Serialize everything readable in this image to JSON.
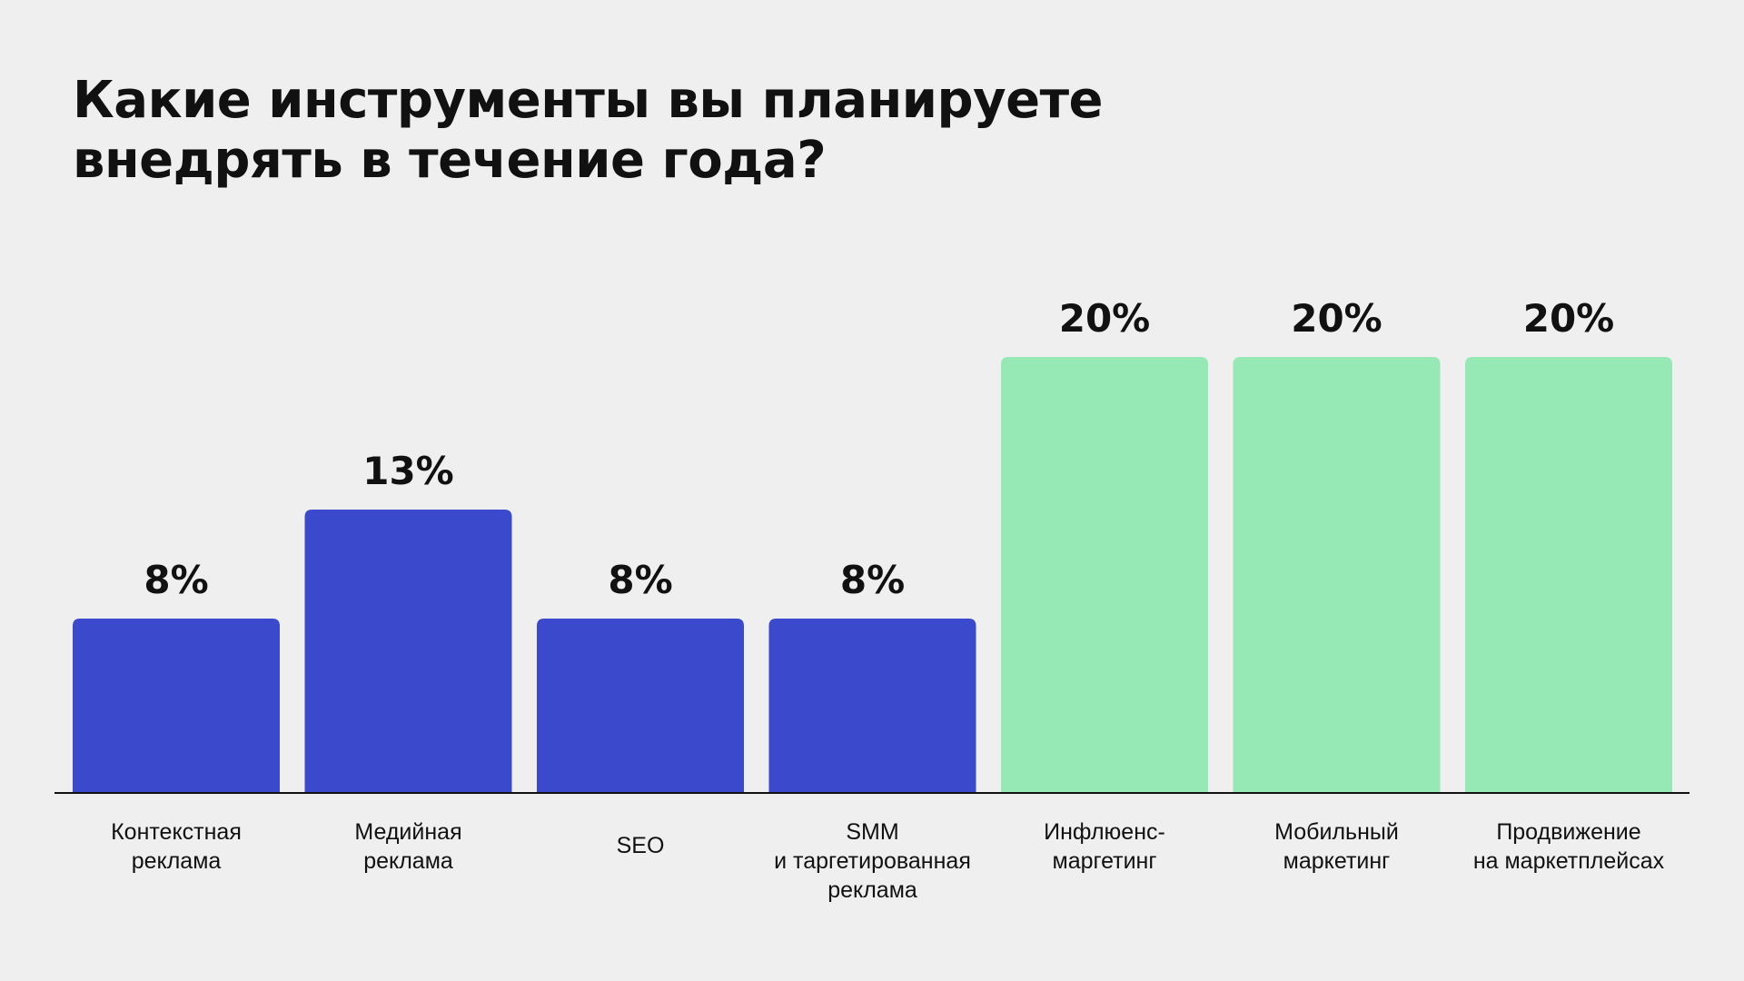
{
  "chart_data": {
    "type": "bar",
    "title_lines": [
      "Какие инструменты вы планируете",
      "внедрять в течение года?"
    ],
    "categories": [
      [
        "Контекстная",
        "реклама"
      ],
      [
        "Медийная",
        "реклама"
      ],
      [
        "SEO"
      ],
      [
        "SMM",
        "и таргетированная",
        "реклама"
      ],
      [
        "Инфлюенс-",
        "маргетинг"
      ],
      [
        "Мобильный",
        "маркетинг"
      ],
      [
        "Продвижение",
        "на маркетплейсах"
      ]
    ],
    "values": [
      8,
      13,
      8,
      8,
      20,
      20,
      20
    ],
    "data_labels": [
      "8%",
      "13%",
      "8%",
      "8%",
      "20%",
      "20%",
      "20%"
    ],
    "colors": [
      "#3b4acc",
      "#3b4acc",
      "#3b4acc",
      "#3b4acc",
      "#96e8b5",
      "#96e8b5",
      "#96e8b5"
    ],
    "axis_color": "#111111",
    "ylim": [
      0,
      20
    ],
    "grid": false,
    "legend": "none"
  }
}
